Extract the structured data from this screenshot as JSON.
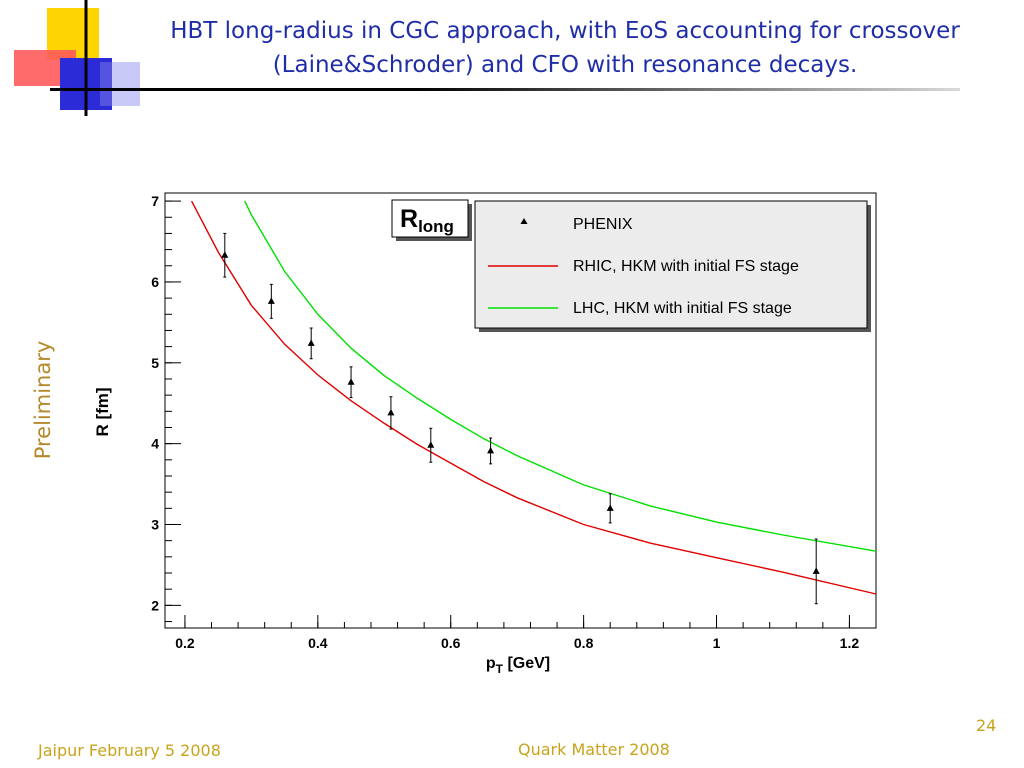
{
  "slide": {
    "title": "HBT long-radius in CGC approach, with EoS accounting for crossover (Laine&Schroder) and CFO with resonance decays.",
    "preliminary": "Preliminary",
    "footer_left": "Jaipur February 5 2008",
    "footer_center": "Quark Matter 2008",
    "page_number": "24"
  },
  "colors": {
    "title": "#1f2ea8",
    "footer": "#c9a31c",
    "preliminary": "#b5892a",
    "rhic": "#e00000",
    "lhc": "#00e000"
  },
  "chart_data": {
    "type": "scatter",
    "panel_label_main": "R",
    "panel_label_sub": "long",
    "xlabel_main": "p",
    "xlabel_sub": "T",
    "xlabel_unit": " [GeV]",
    "ylabel": "R [fm]",
    "xlim": [
      0.17,
      1.24
    ],
    "ylim": [
      1.72,
      7.1
    ],
    "x_ticks": [
      0.2,
      0.4,
      0.6,
      0.8,
      1,
      1.2
    ],
    "x_tick_labels": [
      "0.2",
      "0.4",
      "0.6",
      "0.8",
      "1",
      "1.2"
    ],
    "y_ticks": [
      2,
      3,
      4,
      5,
      6,
      7
    ],
    "y_tick_labels": [
      "2",
      "3",
      "4",
      "5",
      "6",
      "7"
    ],
    "grid": false,
    "legend_position": "top-right",
    "series": [
      {
        "name": "PHENIX",
        "kind": "points",
        "color": "#000000",
        "x": [
          0.26,
          0.33,
          0.39,
          0.45,
          0.51,
          0.57,
          0.66,
          0.84,
          1.15
        ],
        "y": [
          6.33,
          5.76,
          5.24,
          4.76,
          4.38,
          3.98,
          3.91,
          3.2,
          2.42
        ],
        "err": [
          0.27,
          0.21,
          0.19,
          0.19,
          0.2,
          0.21,
          0.16,
          0.18,
          0.4
        ]
      },
      {
        "name": "RHIC, HKM with initial FS stage",
        "kind": "line",
        "color": "#e00000",
        "x": [
          0.21,
          0.25,
          0.3,
          0.35,
          0.4,
          0.45,
          0.5,
          0.55,
          0.6,
          0.65,
          0.7,
          0.8,
          0.9,
          1.0,
          1.1,
          1.24
        ],
        "y": [
          7.0,
          6.37,
          5.71,
          5.23,
          4.85,
          4.53,
          4.25,
          3.99,
          3.76,
          3.53,
          3.33,
          3.0,
          2.77,
          2.59,
          2.41,
          2.14
        ]
      },
      {
        "name": "LHC, HKM with initial FS stage",
        "kind": "line",
        "color": "#00e000",
        "x": [
          0.29,
          0.3,
          0.35,
          0.4,
          0.45,
          0.5,
          0.55,
          0.6,
          0.65,
          0.7,
          0.8,
          0.9,
          1.0,
          1.1,
          1.24
        ],
        "y": [
          7.0,
          6.83,
          6.13,
          5.6,
          5.18,
          4.84,
          4.56,
          4.3,
          4.06,
          3.85,
          3.49,
          3.23,
          3.03,
          2.87,
          2.67
        ]
      }
    ]
  }
}
